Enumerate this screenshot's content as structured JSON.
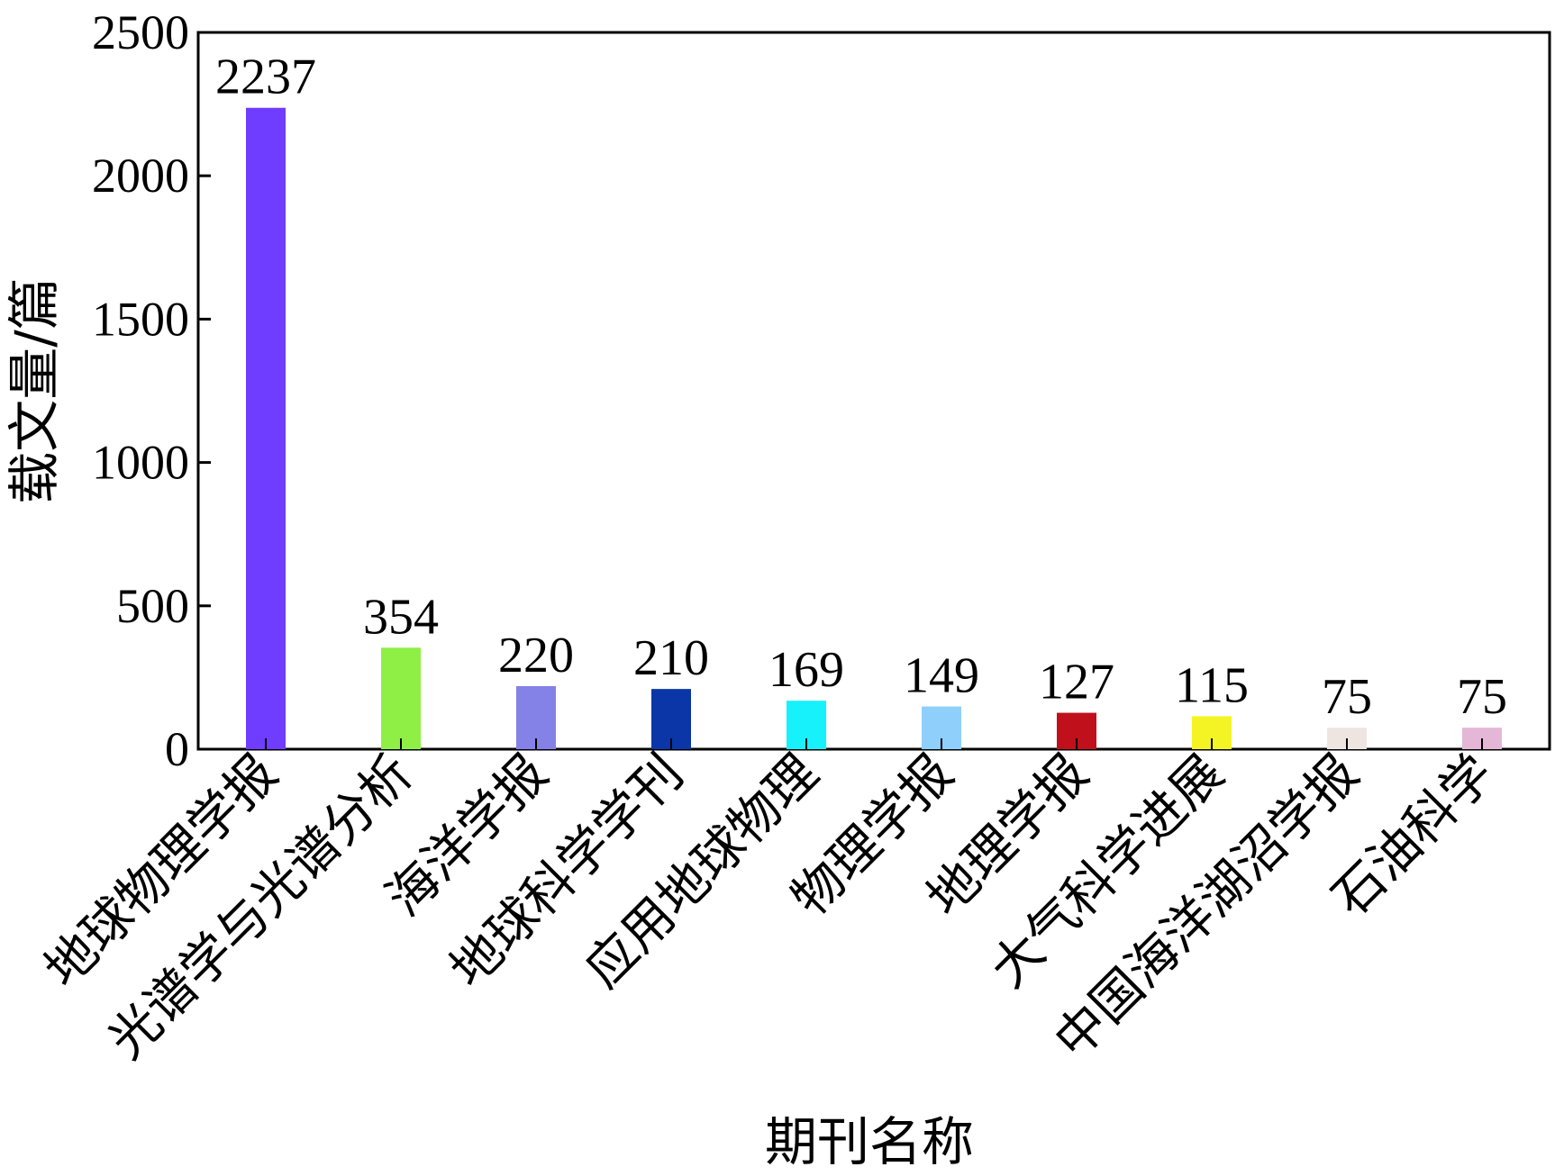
{
  "chart_data": {
    "type": "bar",
    "xlabel": "期刊名称",
    "ylabel": "载文量/篇",
    "ylim": [
      0,
      2500
    ],
    "yticks": [
      0,
      500,
      1000,
      1500,
      2000,
      2500
    ],
    "ytick_labels": [
      "0",
      "500",
      "1000",
      "1500",
      "2000",
      "2500"
    ],
    "grid": false,
    "legend": "none",
    "categories": [
      "地球物理学报",
      "光谱学与光谱分析",
      "海洋学报",
      "地球科学学刊",
      "应用地球物理",
      "物理学报",
      "地理学报",
      "大气科学进展",
      "中国海洋湖沼学报",
      "石油科学"
    ],
    "values": [
      2237,
      354,
      220,
      210,
      169,
      149,
      127,
      115,
      75,
      75
    ],
    "value_labels": [
      "2237",
      "354",
      "220",
      "210",
      "169",
      "149",
      "127",
      "115",
      "75",
      "75"
    ],
    "colors": [
      "#6f3dff",
      "#8fef45",
      "#8482e6",
      "#0b36a8",
      "#17f1fb",
      "#8fcffb",
      "#c0101c",
      "#f4f424",
      "#efe5e0",
      "#e5b7d6"
    ]
  }
}
